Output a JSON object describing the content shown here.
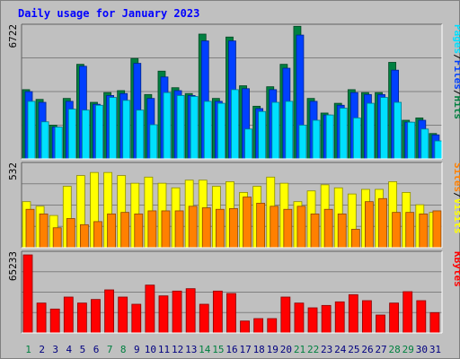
{
  "title": "Daily usage for January 2023",
  "colors": {
    "background": "#c0c0c0",
    "title": "#0000ff",
    "hits": "#008040",
    "files": "#0040ff",
    "pages": "#00e0ff",
    "visits": "#ffff00",
    "sites": "#ff8000",
    "kbytes": "#ff0000",
    "weekend_day_label": "#008040",
    "weekday_label": "#000080"
  },
  "chart_data": [
    {
      "type": "bar",
      "panel": "hits-files-pages",
      "ymax_label": "6722",
      "ymax": 6722,
      "right_label": [
        {
          "text": "Hits",
          "color": "#008040"
        },
        {
          "text": "/",
          "color": "#000000"
        },
        {
          "text": "Files",
          "color": "#0040ff"
        },
        {
          "text": "/",
          "color": "#000000"
        },
        {
          "text": "Pages",
          "color": "#00e0ff"
        }
      ],
      "categories": [
        "1",
        "2",
        "3",
        "4",
        "5",
        "6",
        "7",
        "8",
        "9",
        "10",
        "11",
        "12",
        "13",
        "14",
        "15",
        "16",
        "17",
        "18",
        "19",
        "20",
        "21",
        "22",
        "23",
        "24",
        "25",
        "26",
        "27",
        "28",
        "29",
        "30",
        "31"
      ],
      "series": [
        {
          "name": "Hits",
          "values": [
            3550,
            3050,
            1730,
            3100,
            4850,
            2900,
            3400,
            3500,
            5150,
            3300,
            4500,
            3650,
            3350,
            6400,
            3100,
            6250,
            3750,
            2700,
            3700,
            4850,
            6800,
            3100,
            2350,
            2850,
            3550,
            3400,
            3400,
            4950,
            1980,
            2100,
            1300
          ]
        },
        {
          "name": "Files",
          "values": [
            3450,
            2900,
            1630,
            2950,
            4750,
            2800,
            3250,
            3350,
            4900,
            3100,
            4200,
            3500,
            3250,
            6050,
            2950,
            6050,
            3600,
            2580,
            3550,
            4650,
            6350,
            2950,
            2250,
            2750,
            3400,
            3300,
            3300,
            4550,
            1880,
            1980,
            1230
          ]
        },
        {
          "name": "Pages",
          "values": [
            2950,
            1900,
            1630,
            2550,
            2500,
            2750,
            3150,
            3000,
            2500,
            1750,
            3400,
            3250,
            3200,
            2950,
            2850,
            3550,
            1530,
            2430,
            2900,
            2950,
            1730,
            1980,
            2250,
            2600,
            2100,
            2850,
            3150,
            2900,
            1880,
            1530,
            920
          ]
        }
      ]
    },
    {
      "type": "bar",
      "panel": "visits-sites",
      "ymax_label": "532",
      "ymax": 532,
      "right_label": [
        {
          "text": "Visits",
          "color": "#ffff00"
        },
        {
          "text": "/",
          "color": "#000000"
        },
        {
          "text": "Sites",
          "color": "#ff8000"
        }
      ],
      "categories": [
        "1",
        "2",
        "3",
        "4",
        "5",
        "6",
        "7",
        "8",
        "9",
        "10",
        "11",
        "12",
        "13",
        "14",
        "15",
        "16",
        "17",
        "18",
        "19",
        "20",
        "21",
        "22",
        "23",
        "24",
        "25",
        "26",
        "27",
        "28",
        "29",
        "30",
        "31"
      ],
      "series": [
        {
          "name": "Visits",
          "values": [
            300,
            270,
            210,
            400,
            470,
            490,
            490,
            470,
            420,
            460,
            420,
            390,
            440,
            440,
            400,
            430,
            360,
            400,
            460,
            420,
            300,
            370,
            410,
            390,
            350,
            380,
            380,
            430,
            360,
            280,
            230
          ]
        },
        {
          "name": "Sites",
          "values": [
            250,
            220,
            130,
            190,
            150,
            170,
            220,
            230,
            220,
            240,
            240,
            240,
            270,
            260,
            250,
            255,
            330,
            290,
            270,
            250,
            270,
            220,
            250,
            220,
            120,
            300,
            320,
            230,
            230,
            220,
            240
          ]
        }
      ]
    },
    {
      "type": "bar",
      "panel": "kbytes",
      "ymax_label": "65233",
      "ymax": 65233,
      "right_label": [
        {
          "text": "KBytes",
          "color": "#ff0000"
        }
      ],
      "categories": [
        "1",
        "2",
        "3",
        "4",
        "5",
        "6",
        "7",
        "8",
        "9",
        "10",
        "11",
        "12",
        "13",
        "14",
        "15",
        "16",
        "17",
        "18",
        "19",
        "20",
        "21",
        "22",
        "23",
        "24",
        "25",
        "26",
        "27",
        "28",
        "29",
        "30",
        "31"
      ],
      "series": [
        {
          "name": "KBytes",
          "values": [
            65233,
            25000,
            20000,
            30000,
            25000,
            28000,
            36000,
            30000,
            24000,
            40000,
            31000,
            35000,
            37000,
            24000,
            35000,
            33000,
            10000,
            12000,
            12000,
            30000,
            25000,
            21000,
            23000,
            26000,
            32000,
            27000,
            15000,
            25000,
            34500,
            27000,
            17000
          ]
        }
      ]
    }
  ],
  "day_labels": [
    {
      "text": "1",
      "weekend": true
    },
    {
      "text": "2",
      "weekend": false
    },
    {
      "text": "3",
      "weekend": false
    },
    {
      "text": "4",
      "weekend": false
    },
    {
      "text": "5",
      "weekend": false
    },
    {
      "text": "6",
      "weekend": false
    },
    {
      "text": "7",
      "weekend": true
    },
    {
      "text": "8",
      "weekend": true
    },
    {
      "text": "9",
      "weekend": false
    },
    {
      "text": "10",
      "weekend": false
    },
    {
      "text": "11",
      "weekend": false
    },
    {
      "text": "12",
      "weekend": false
    },
    {
      "text": "13",
      "weekend": false
    },
    {
      "text": "14",
      "weekend": true
    },
    {
      "text": "15",
      "weekend": true
    },
    {
      "text": "16",
      "weekend": false
    },
    {
      "text": "17",
      "weekend": false
    },
    {
      "text": "18",
      "weekend": false
    },
    {
      "text": "19",
      "weekend": false
    },
    {
      "text": "20",
      "weekend": false
    },
    {
      "text": "21",
      "weekend": true
    },
    {
      "text": "22",
      "weekend": true
    },
    {
      "text": "23",
      "weekend": false
    },
    {
      "text": "24",
      "weekend": false
    },
    {
      "text": "25",
      "weekend": false
    },
    {
      "text": "26",
      "weekend": false
    },
    {
      "text": "27",
      "weekend": false
    },
    {
      "text": "28",
      "weekend": true
    },
    {
      "text": "29",
      "weekend": true
    },
    {
      "text": "30",
      "weekend": false
    },
    {
      "text": "31",
      "weekend": false
    }
  ]
}
